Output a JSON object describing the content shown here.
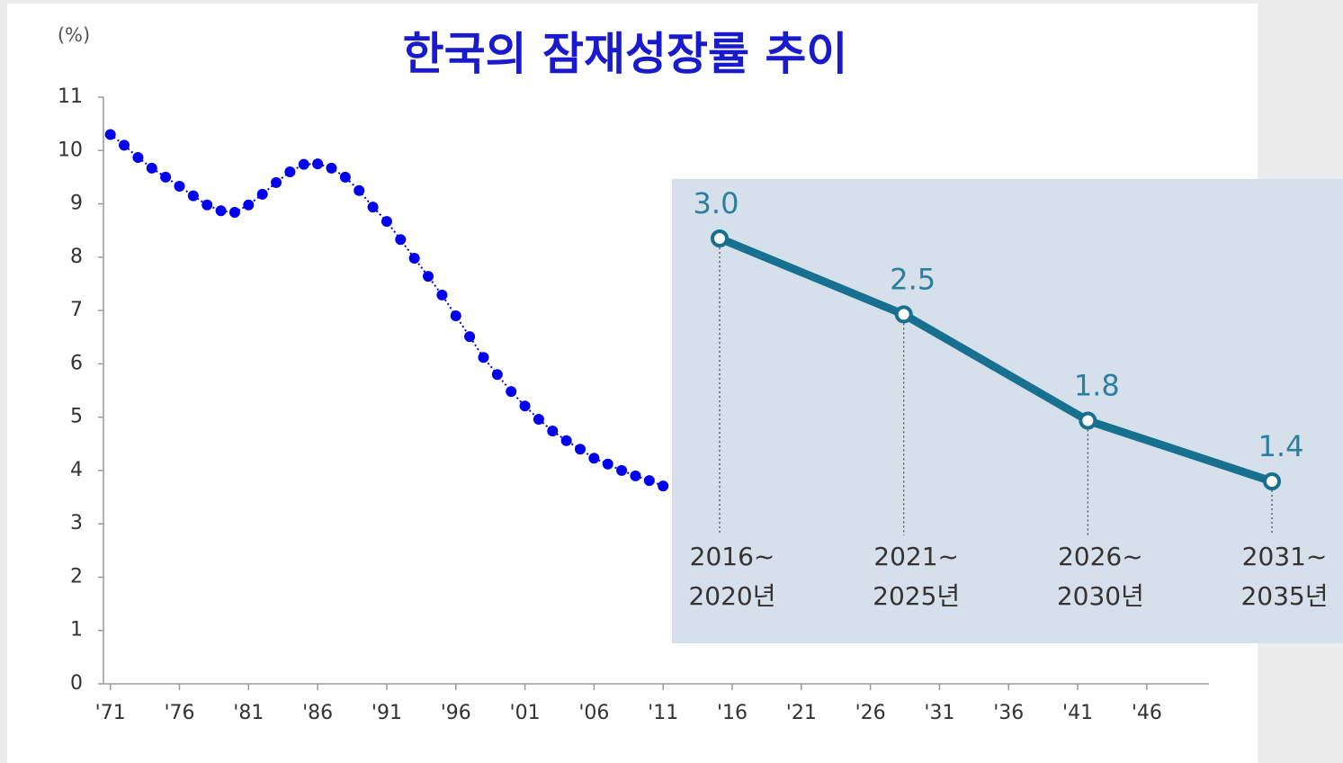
{
  "chart_data": [
    {
      "type": "line",
      "title": "한국의 잠재성장률 추이",
      "y_label": "(%)",
      "x": [
        1971,
        1972,
        1973,
        1974,
        1975,
        1976,
        1977,
        1978,
        1979,
        1980,
        1981,
        1982,
        1983,
        1984,
        1985,
        1986,
        1987,
        1988,
        1989,
        1990,
        1991,
        1992,
        1993,
        1994,
        1995,
        1996,
        1997,
        1998,
        1999,
        2000,
        2001,
        2002,
        2003,
        2004,
        2005,
        2006,
        2007,
        2008,
        2009,
        2010,
        2011
      ],
      "values": [
        10.3,
        10.1,
        9.87,
        9.67,
        9.5,
        9.33,
        9.15,
        8.98,
        8.87,
        8.84,
        8.98,
        9.18,
        9.4,
        9.6,
        9.74,
        9.75,
        9.67,
        9.5,
        9.25,
        8.94,
        8.67,
        8.33,
        7.98,
        7.64,
        7.29,
        6.9,
        6.51,
        6.12,
        5.8,
        5.48,
        5.21,
        4.96,
        4.74,
        4.56,
        4.4,
        4.23,
        4.12,
        4.0,
        3.9,
        3.81,
        3.71
      ],
      "color": "#0000ee",
      "xlim": [
        1970.5,
        2050.5
      ],
      "xticks": [
        {
          "value": 1971,
          "label": "'71"
        },
        {
          "value": 1976,
          "label": "'76"
        },
        {
          "value": 1981,
          "label": "'81"
        },
        {
          "value": 1986,
          "label": "'86"
        },
        {
          "value": 1991,
          "label": "'91"
        },
        {
          "value": 1996,
          "label": "'96"
        },
        {
          "value": 2001,
          "label": "'01"
        },
        {
          "value": 2006,
          "label": "'06"
        },
        {
          "value": 2011,
          "label": "'11"
        },
        {
          "value": 2016,
          "label": "'16"
        },
        {
          "value": 2021,
          "label": "'21"
        },
        {
          "value": 2026,
          "label": "'26"
        },
        {
          "value": 2031,
          "label": "'31"
        },
        {
          "value": 2036,
          "label": "'36"
        },
        {
          "value": 2041,
          "label": "'41"
        },
        {
          "value": 2046,
          "label": "'46"
        }
      ],
      "ylim": [
        0,
        11
      ],
      "yticks": [
        0,
        1,
        2,
        3,
        4,
        5,
        6,
        7,
        8,
        9,
        10,
        11
      ]
    },
    {
      "type": "line",
      "categories": [
        [
          "2016~",
          "2020년"
        ],
        [
          "2021~",
          "2025년"
        ],
        [
          "2026~",
          "2030년"
        ],
        [
          "2031~",
          "2035년"
        ]
      ],
      "values": [
        3.0,
        2.5,
        1.8,
        1.4
      ],
      "value_labels": [
        "3.0",
        "2.5",
        "1.8",
        "1.4"
      ],
      "color": "#17708f"
    }
  ]
}
